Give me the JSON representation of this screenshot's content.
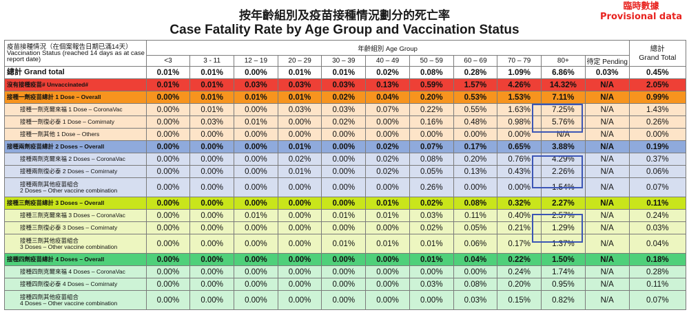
{
  "title_zh": "按年齡組別及疫苗接種情況劃分的死亡率",
  "title_en": "Case Fatality Rate by Age Group and Vaccination Status",
  "provisional_zh": "臨時數據",
  "provisional_en": "Provisional data",
  "header": {
    "status_zh": "疫苗接種情況（在個案報告日期已滿14天）",
    "status_en": "Vaccination Status (reached 14 days as at case report date)",
    "age_group": "年齡組別 Age Group",
    "total_zh": "總計",
    "total_en": "Grand Total",
    "ages": [
      "<3",
      "3 - 11",
      "12 – 19",
      "20 – 29",
      "30 – 39",
      "40 – 49",
      "50 – 59",
      "60 – 69",
      "70 – 79",
      "80+",
      "待定 Pending"
    ]
  },
  "rows": [
    {
      "cls": "grand boldrow",
      "label1": "總計 Grand total",
      "label2": "",
      "values": [
        "0.01%",
        "0.01%",
        "0.00%",
        "0.01%",
        "0.01%",
        "0.02%",
        "0.08%",
        "0.28%",
        "1.09%",
        "6.86%",
        "0.03%",
        "0.45%"
      ]
    },
    {
      "cls": "unvac boldrow",
      "label1": "沒有接種疫苗# Unvaccinated#",
      "label2": "",
      "values": [
        "0.01%",
        "0.01%",
        "0.03%",
        "0.03%",
        "0.03%",
        "0.13%",
        "0.59%",
        "1.57%",
        "4.26%",
        "14.32%",
        "N/A",
        "2.05%"
      ]
    },
    {
      "cls": "d1o boldrow",
      "label1": "接種一劑疫苗總計 1 Dose – Overall",
      "label2": "",
      "values": [
        "0.00%",
        "0.01%",
        "0.01%",
        "0.01%",
        "0.02%",
        "0.04%",
        "0.20%",
        "0.53%",
        "1.53%",
        "7.11%",
        "N/A",
        "0.99%"
      ]
    },
    {
      "cls": "d1 sub",
      "label1": "接種一劑克爾來福 1 Dose – CoronaVac",
      "label2": "",
      "values": [
        "0.00%",
        "0.01%",
        "0.00%",
        "0.03%",
        "0.03%",
        "0.07%",
        "0.22%",
        "0.55%",
        "1.63%",
        "7.25%",
        "N/A",
        "1.43%"
      ]
    },
    {
      "cls": "d1 sub",
      "label1": "接種一劑復必泰 1 Dose – Comirnaty",
      "label2": "",
      "values": [
        "0.00%",
        "0.03%",
        "0.01%",
        "0.00%",
        "0.02%",
        "0.00%",
        "0.16%",
        "0.48%",
        "0.98%",
        "5.76%",
        "N/A",
        "0.26%"
      ]
    },
    {
      "cls": "d1 sub",
      "label1": "接種一劑其他 1 Dose – Others",
      "label2": "",
      "values": [
        "0.00%",
        "0.00%",
        "0.00%",
        "0.00%",
        "0.00%",
        "0.00%",
        "0.00%",
        "0.00%",
        "0.00%",
        "N/A",
        "N/A",
        "0.00%"
      ]
    },
    {
      "cls": "d2o boldrow",
      "label1": "接種兩劑疫苗總計 2 Doses – Overall",
      "label2": "",
      "values": [
        "0.00%",
        "0.00%",
        "0.00%",
        "0.01%",
        "0.00%",
        "0.02%",
        "0.07%",
        "0.17%",
        "0.65%",
        "3.88%",
        "N/A",
        "0.19%"
      ]
    },
    {
      "cls": "d2 sub",
      "label1": "接種兩劑克爾來福 2 Doses – CoronaVac",
      "label2": "",
      "values": [
        "0.00%",
        "0.00%",
        "0.00%",
        "0.02%",
        "0.00%",
        "0.02%",
        "0.08%",
        "0.20%",
        "0.76%",
        "4.29%",
        "N/A",
        "0.37%"
      ]
    },
    {
      "cls": "d2 sub",
      "label1": "接種兩劑復必泰 2 Doses – Comirnaty",
      "label2": "",
      "values": [
        "0.00%",
        "0.00%",
        "0.00%",
        "0.01%",
        "0.00%",
        "0.02%",
        "0.05%",
        "0.13%",
        "0.43%",
        "2.26%",
        "N/A",
        "0.06%"
      ]
    },
    {
      "cls": "d2 sub tall",
      "label1": "接種兩劑其他疫苗組合",
      "label2": "2 Doses – Other vaccine combination",
      "values": [
        "0.00%",
        "0.00%",
        "0.00%",
        "0.00%",
        "0.00%",
        "0.00%",
        "0.26%",
        "0.00%",
        "0.00%",
        "1.54%",
        "N/A",
        "0.07%"
      ]
    },
    {
      "cls": "d3o boldrow",
      "label1": "接種三劑疫苗總計 3 Doses – Overall",
      "label2": "",
      "values": [
        "0.00%",
        "0.00%",
        "0.00%",
        "0.00%",
        "0.00%",
        "0.01%",
        "0.02%",
        "0.08%",
        "0.32%",
        "2.27%",
        "N/A",
        "0.11%"
      ]
    },
    {
      "cls": "d3 sub",
      "label1": "接種三劑克爾來福 3 Doses – CoronaVac",
      "label2": "",
      "values": [
        "0.00%",
        "0.00%",
        "0.01%",
        "0.00%",
        "0.01%",
        "0.01%",
        "0.03%",
        "0.11%",
        "0.40%",
        "2.57%",
        "N/A",
        "0.24%"
      ]
    },
    {
      "cls": "d3 sub",
      "label1": "接種三劑復必泰 3 Doses – Comirnaty",
      "label2": "",
      "values": [
        "0.00%",
        "0.00%",
        "0.00%",
        "0.00%",
        "0.00%",
        "0.00%",
        "0.02%",
        "0.05%",
        "0.21%",
        "1.29%",
        "N/A",
        "0.03%"
      ]
    },
    {
      "cls": "d3 sub tall",
      "label1": "接種三劑其他疫苗組合",
      "label2": "3 Doses – Other vaccine combination",
      "values": [
        "0.00%",
        "0.00%",
        "0.00%",
        "0.00%",
        "0.01%",
        "0.01%",
        "0.01%",
        "0.06%",
        "0.17%",
        "1.37%",
        "N/A",
        "0.04%"
      ]
    },
    {
      "cls": "d4o boldrow",
      "label1": "接種四劑疫苗總計 4 Doses – Overall",
      "label2": "",
      "values": [
        "0.00%",
        "0.00%",
        "0.00%",
        "0.00%",
        "0.00%",
        "0.00%",
        "0.01%",
        "0.04%",
        "0.22%",
        "1.50%",
        "N/A",
        "0.18%"
      ]
    },
    {
      "cls": "d4 sub",
      "label1": "接種四劑克爾來福 4 Doses – CoronaVac",
      "label2": "",
      "values": [
        "0.00%",
        "0.00%",
        "0.00%",
        "0.00%",
        "0.00%",
        "0.00%",
        "0.00%",
        "0.00%",
        "0.24%",
        "1.74%",
        "N/A",
        "0.28%"
      ]
    },
    {
      "cls": "d4 sub",
      "label1": "接種四劑復必泰 4 Doses – Comirnaty",
      "label2": "",
      "values": [
        "0.00%",
        "0.00%",
        "0.00%",
        "0.00%",
        "0.00%",
        "0.00%",
        "0.03%",
        "0.08%",
        "0.20%",
        "0.95%",
        "N/A",
        "0.11%"
      ]
    },
    {
      "cls": "d4 sub tall",
      "label1": "接種四劑其他疫苗組合",
      "label2": "4 Doses – Other vaccine combination",
      "values": [
        "0.00%",
        "0.00%",
        "0.00%",
        "0.00%",
        "0.00%",
        "0.00%",
        "0.00%",
        "0.03%",
        "0.15%",
        "0.82%",
        "N/A",
        "0.07%"
      ]
    }
  ]
}
